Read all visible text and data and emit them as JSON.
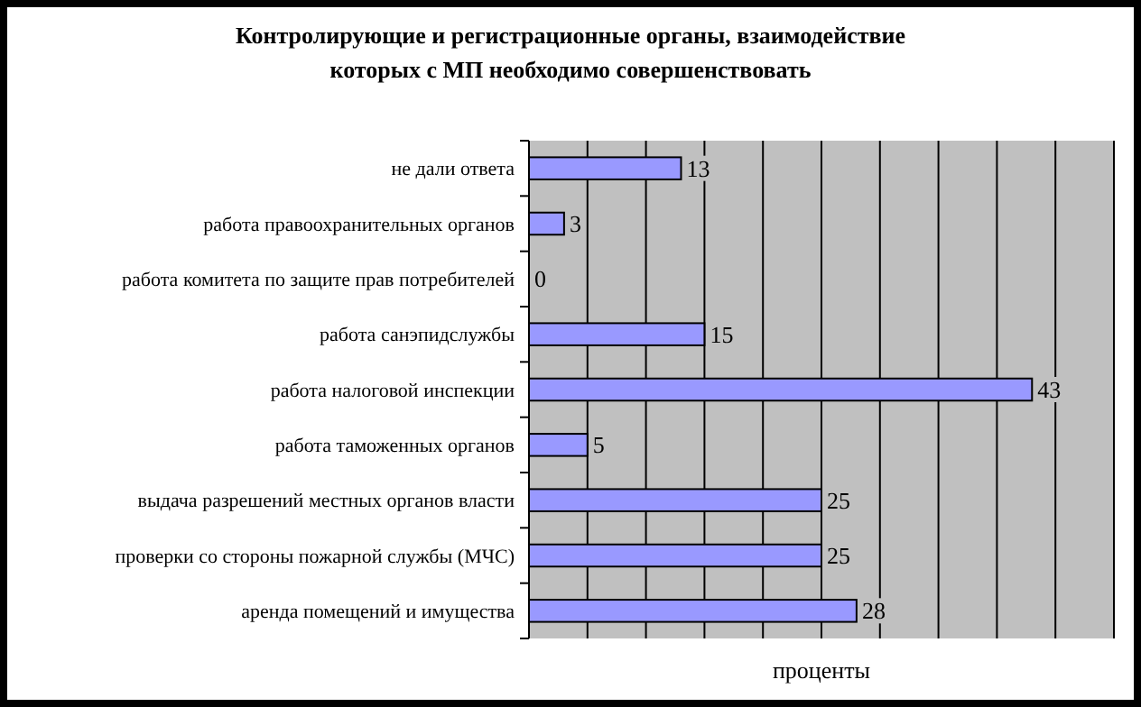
{
  "chart_data": {
    "type": "bar",
    "orientation": "horizontal",
    "title": "Контролирующие и регистрационные органы, взаимодействие которых с МП необходимо совершенствовать",
    "xlabel": "проценты",
    "categories": [
      "не дали ответа",
      "работа правоохранительных органов",
      "работа комитета по защите прав потребителей",
      "работа санэпидслужбы",
      "работа налоговой инспекции",
      "работа таможенных органов",
      "выдача разрешений местных органов власти",
      "проверки со стороны пожарной службы (МЧС)",
      "аренда помещений и имущества"
    ],
    "values": [
      13,
      3,
      0,
      15,
      43,
      5,
      25,
      25,
      28
    ],
    "color": "#9999ff",
    "data_labels": true,
    "xlim": [
      0,
      50
    ],
    "xticks": [
      {
        "value": 0,
        "label": null
      },
      {
        "value": 5,
        "label": null
      },
      {
        "value": 10,
        "label": null
      },
      {
        "value": 15,
        "label": null
      },
      {
        "value": 20,
        "label": null
      },
      {
        "value": 25,
        "label": null
      },
      {
        "value": 30,
        "label": null
      },
      {
        "value": 35,
        "label": null
      },
      {
        "value": 40,
        "label": null
      },
      {
        "value": 45,
        "label": null
      },
      {
        "value": 50,
        "label": null
      }
    ],
    "grid": "x",
    "tick_labels": "y"
  }
}
